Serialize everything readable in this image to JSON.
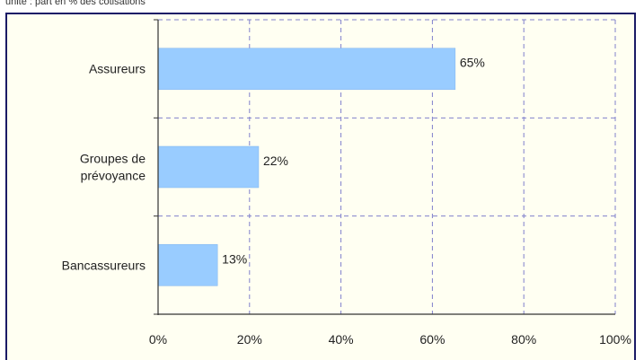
{
  "caption": "unité : part en % des cotisations",
  "colors": {
    "bar": "#99ccff",
    "bar_stroke": "#7fb2ee",
    "grid": "#8080cc",
    "axis": "#333333",
    "frame": "#1a1a66",
    "plot_bg": "#fffff2"
  },
  "chart_data": {
    "type": "bar",
    "orientation": "horizontal",
    "categories": [
      [
        "Assureurs"
      ],
      [
        "Groupes de",
        "prévoyance"
      ],
      [
        "Bancassureurs"
      ]
    ],
    "values": [
      65,
      22,
      13
    ],
    "value_labels": [
      "65%",
      "22%",
      "13%"
    ],
    "xlim": [
      0,
      100
    ],
    "x_ticks": [
      0,
      20,
      40,
      60,
      80,
      100
    ],
    "x_tick_labels": [
      "0%",
      "20%",
      "40%",
      "60%",
      "80%",
      "100%"
    ],
    "grid": true,
    "grid_style": "dashed",
    "legend": "none"
  }
}
